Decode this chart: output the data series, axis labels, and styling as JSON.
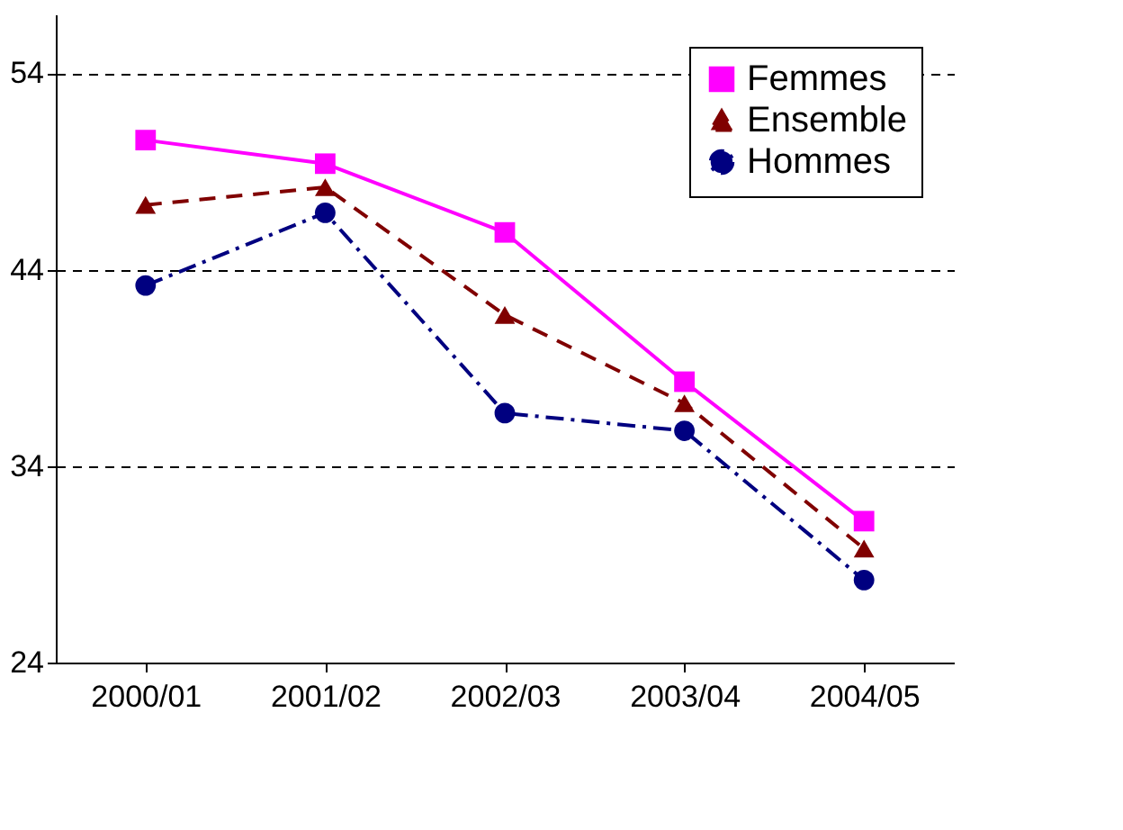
{
  "chart_data": {
    "type": "line",
    "categories": [
      "2000/01",
      "2001/02",
      "2002/03",
      "2003/04",
      "2004/05"
    ],
    "series": [
      {
        "name": "Femmes",
        "color": "#ff00ff",
        "marker": "square",
        "line_style": "solid",
        "values": [
          50.6,
          49.4,
          45.9,
          38.3,
          31.2
        ]
      },
      {
        "name": "Ensemble",
        "color": "#800000",
        "marker": "triangle",
        "line_style": "dashed",
        "values": [
          47.3,
          48.2,
          41.7,
          37.2,
          29.8
        ]
      },
      {
        "name": "Hommes",
        "color": "#000080",
        "marker": "circle",
        "line_style": "dashdot",
        "values": [
          43.2,
          46.9,
          36.7,
          35.8,
          28.2
        ]
      }
    ],
    "ylim": [
      24,
      57
    ],
    "yticks": [
      24,
      34,
      44,
      54
    ],
    "grid": "y",
    "legend": "top right"
  }
}
